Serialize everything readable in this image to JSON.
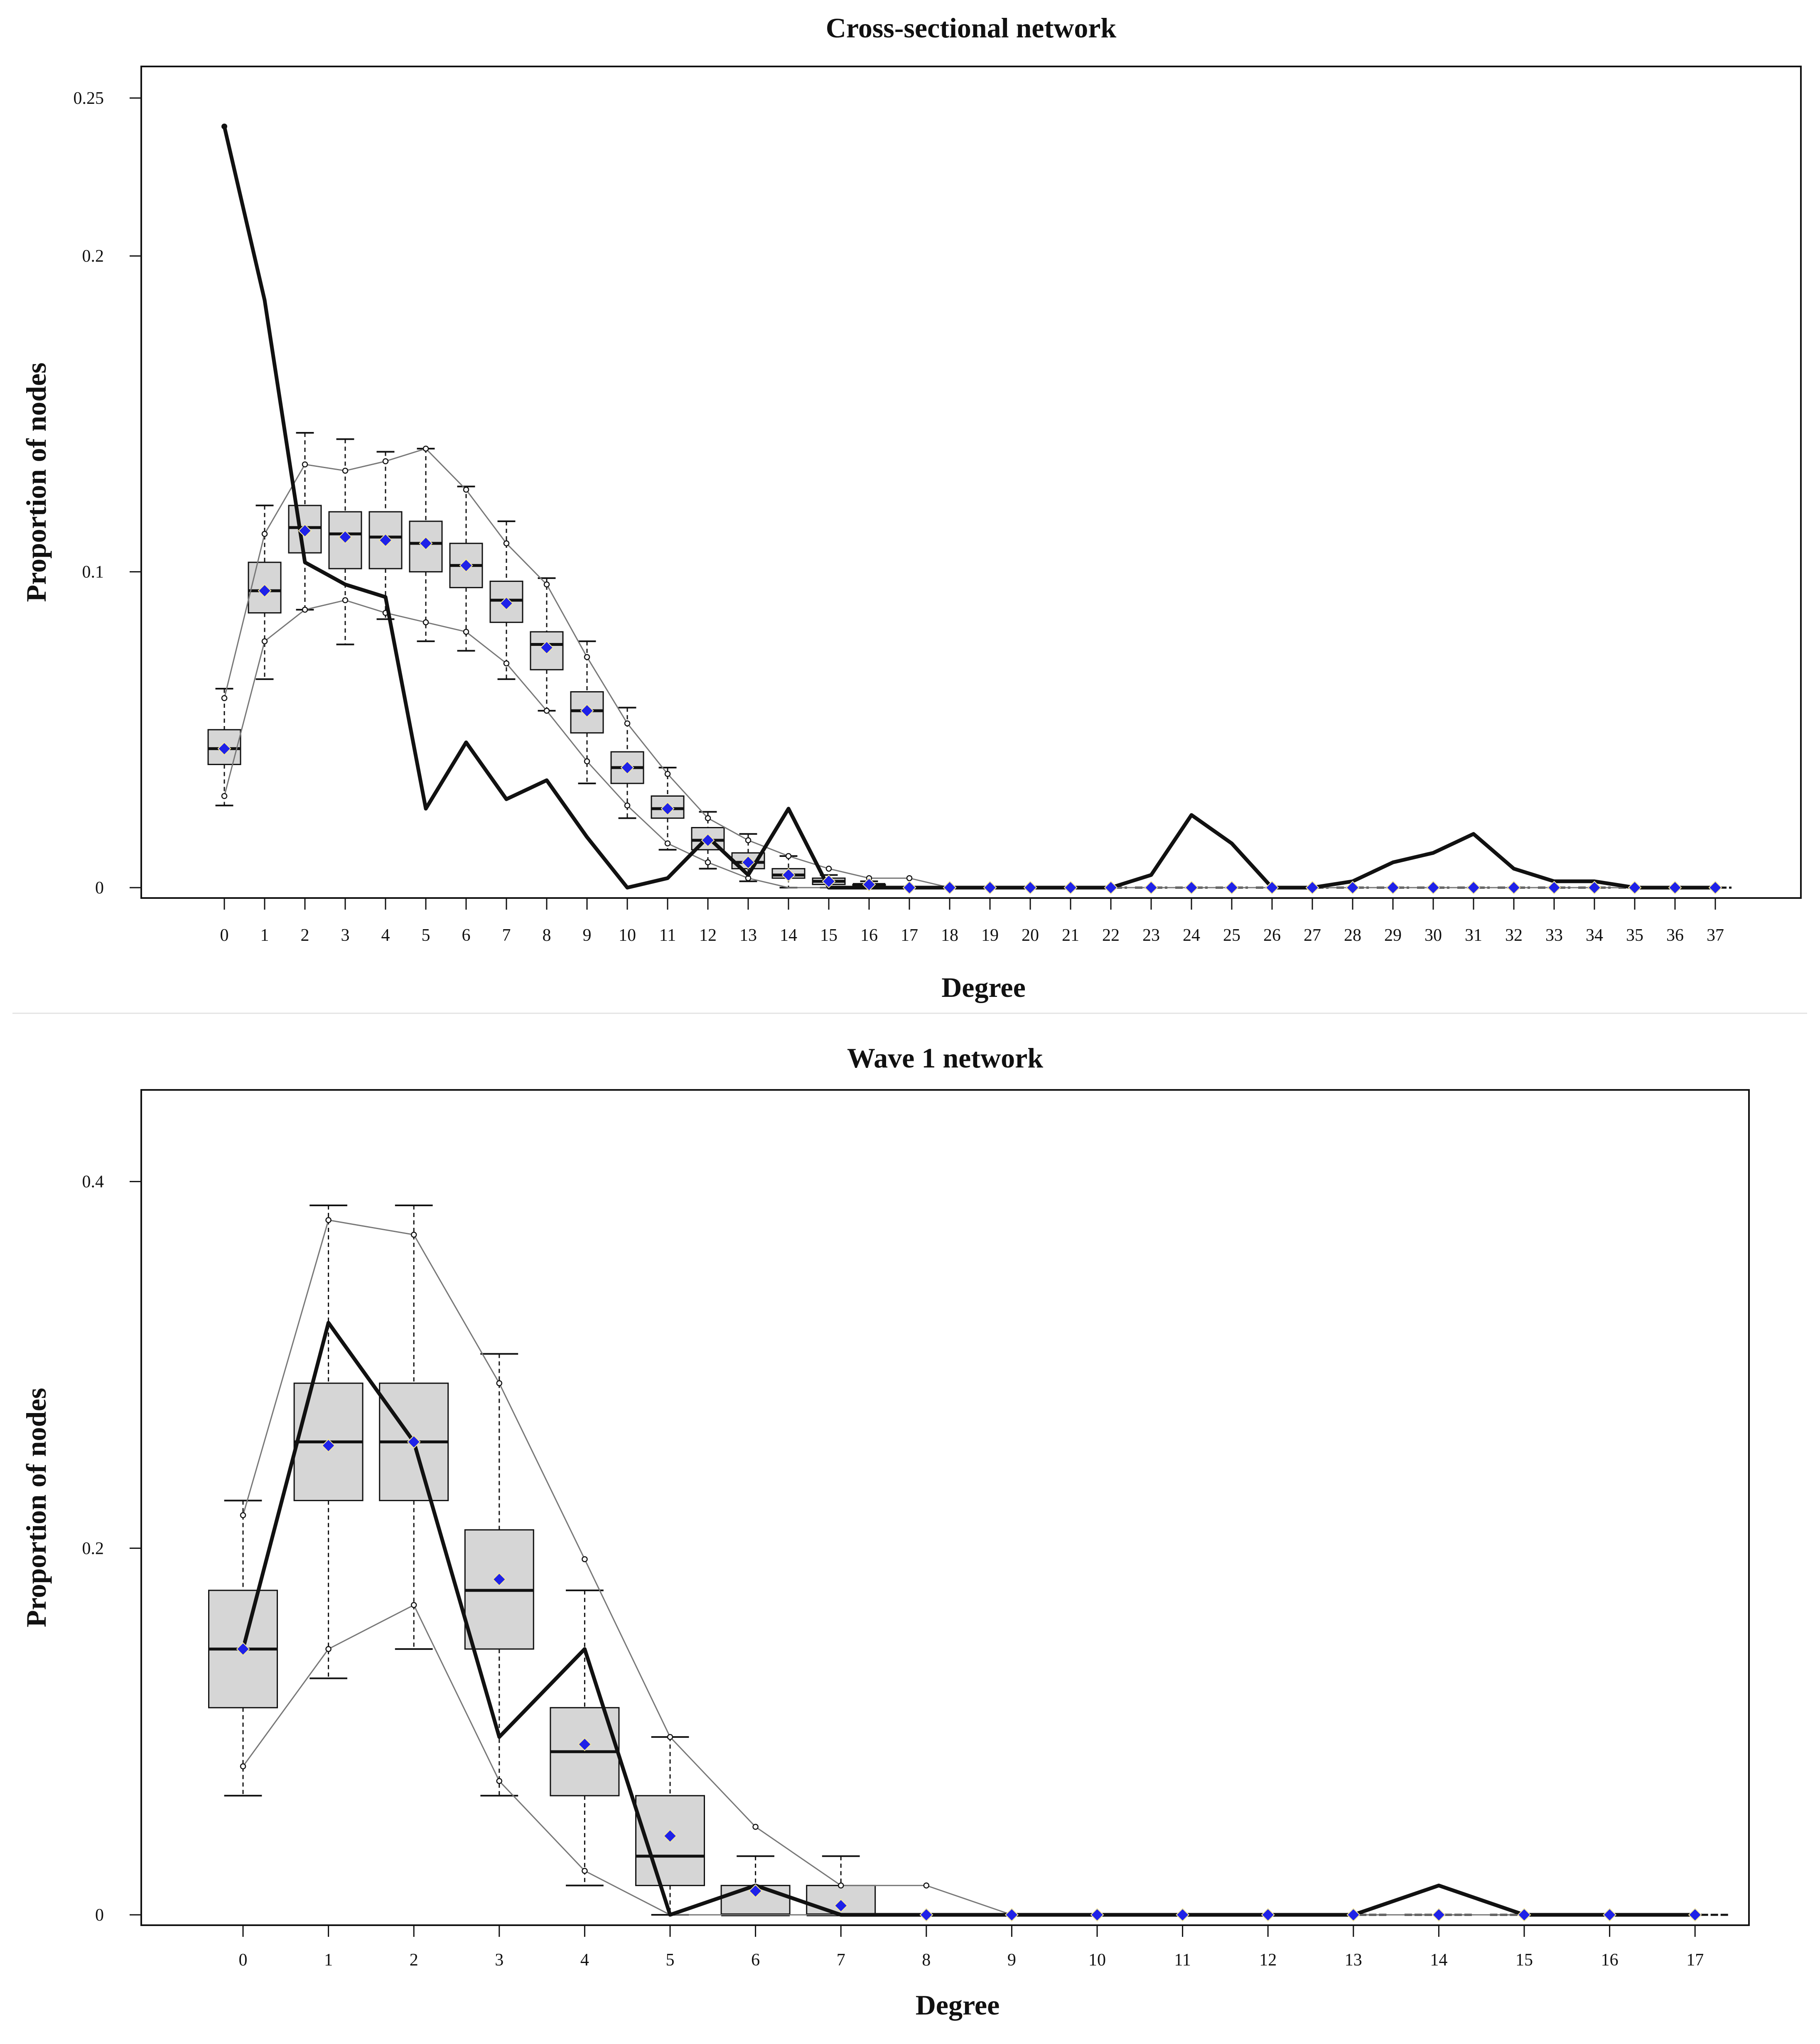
{
  "colors": {
    "box_fill": "#d6d6d6",
    "observed_line": "#111111",
    "quantile_line": "#777777",
    "mean_marker": "#1f22e8"
  },
  "chart_data": [
    {
      "type": "boxplot",
      "title": "Cross-sectional network",
      "xlabel": "Degree",
      "ylabel": "Proportion of nodes",
      "ylim": [
        0,
        0.26
      ],
      "x": [
        0,
        1,
        2,
        3,
        4,
        5,
        6,
        7,
        8,
        9,
        10,
        11,
        12,
        13,
        14,
        15,
        16,
        17,
        18,
        19,
        20,
        21,
        22,
        23,
        24,
        25,
        26,
        27,
        28,
        29,
        30,
        31,
        32,
        33,
        34,
        35,
        36,
        37
      ],
      "yticks": [
        0,
        0.1,
        0.2,
        0.25
      ],
      "ytick_labels": [
        "0",
        "0.1",
        "0.2",
        "0.25"
      ],
      "observed": [
        0.241,
        0.186,
        0.103,
        0.096,
        0.092,
        0.025,
        0.046,
        0.028,
        0.034,
        0.016,
        0.0,
        0.003,
        0.016,
        0.004,
        0.025,
        0.0,
        0.0,
        0.0,
        0.0,
        0.0,
        0.0,
        0.0,
        0.0,
        0.004,
        0.023,
        0.014,
        0.0,
        0.0,
        0.002,
        0.008,
        0.011,
        0.017,
        0.006,
        0.002,
        0.002,
        0.0,
        0.0,
        0.0
      ],
      "sim_mean": [
        0.044,
        0.094,
        0.113,
        0.111,
        0.11,
        0.109,
        0.102,
        0.09,
        0.076,
        0.056,
        0.038,
        0.025,
        0.015,
        0.008,
        0.004,
        0.002,
        0.001,
        0.0,
        0.0,
        0.0,
        0.0,
        0.0,
        0.0,
        0.0,
        0.0,
        0.0,
        0.0,
        0.0,
        0.0,
        0.0,
        0.0,
        0.0,
        0.0,
        0.0,
        0.0,
        0.0,
        0.0,
        0.0
      ],
      "box_median": [
        0.044,
        0.094,
        0.114,
        0.112,
        0.111,
        0.109,
        0.102,
        0.091,
        0.077,
        0.056,
        0.038,
        0.025,
        0.015,
        0.008,
        0.004,
        0.002,
        0.001,
        0.0,
        0.0,
        0.0,
        0.0,
        0.0,
        0.0,
        0.0,
        0.0,
        0.0,
        0.0,
        0.0,
        0.0,
        0.0,
        0.0,
        0.0,
        0.0,
        0.0,
        0.0,
        0.0,
        0.0,
        0.0
      ],
      "box_q1": [
        0.039,
        0.087,
        0.106,
        0.101,
        0.101,
        0.1,
        0.095,
        0.084,
        0.069,
        0.049,
        0.033,
        0.022,
        0.012,
        0.006,
        0.003,
        0.001,
        0.0,
        0.0,
        0.0,
        0.0,
        0.0,
        0.0,
        0.0,
        0.0,
        0.0,
        0.0,
        0.0,
        0.0,
        0.0,
        0.0,
        0.0,
        0.0,
        0.0,
        0.0,
        0.0,
        0.0,
        0.0,
        0.0
      ],
      "box_q3": [
        0.05,
        0.103,
        0.121,
        0.119,
        0.119,
        0.116,
        0.109,
        0.097,
        0.081,
        0.062,
        0.043,
        0.029,
        0.019,
        0.011,
        0.006,
        0.003,
        0.001,
        0.0,
        0.0,
        0.0,
        0.0,
        0.0,
        0.0,
        0.0,
        0.0,
        0.0,
        0.0,
        0.0,
        0.0,
        0.0,
        0.0,
        0.0,
        0.0,
        0.0,
        0.0,
        0.0,
        0.0,
        0.0
      ],
      "whisker_low": [
        0.026,
        0.066,
        0.088,
        0.077,
        0.085,
        0.078,
        0.075,
        0.066,
        0.056,
        0.033,
        0.022,
        0.012,
        0.006,
        0.002,
        0.0,
        0.0,
        0.0,
        0.0,
        0.0,
        0.0,
        0.0,
        0.0,
        0.0,
        0.0,
        0.0,
        0.0,
        0.0,
        0.0,
        0.0,
        0.0,
        0.0,
        0.0,
        0.0,
        0.0,
        0.0,
        0.0,
        0.0,
        0.0
      ],
      "whisker_high": [
        0.063,
        0.121,
        0.144,
        0.142,
        0.138,
        0.139,
        0.127,
        0.116,
        0.098,
        0.078,
        0.057,
        0.038,
        0.024,
        0.017,
        0.01,
        0.004,
        0.002,
        0.0,
        0.0,
        0.0,
        0.0,
        0.0,
        0.0,
        0.0,
        0.0,
        0.0,
        0.0,
        0.0,
        0.0,
        0.0,
        0.0,
        0.0,
        0.0,
        0.0,
        0.0,
        0.0,
        0.0,
        0.0
      ],
      "lower_quantile_line": [
        0.029,
        0.078,
        0.088,
        0.091,
        0.087,
        0.084,
        0.081,
        0.071,
        0.056,
        0.04,
        0.026,
        0.014,
        0.008,
        0.003,
        0.0,
        0.0,
        0.0,
        0.0,
        0.0,
        0.0,
        0.0,
        0.0,
        0.0,
        0.0,
        0.0,
        0.0,
        0.0,
        0.0,
        0.0,
        0.0,
        0.0,
        0.0,
        0.0,
        0.0,
        0.0,
        0.0,
        0.0,
        0.0
      ],
      "upper_quantile_line": [
        0.06,
        0.112,
        0.134,
        0.132,
        0.135,
        0.139,
        0.126,
        0.109,
        0.096,
        0.073,
        0.052,
        0.036,
        0.022,
        0.015,
        0.01,
        0.006,
        0.003,
        0.003,
        0.0,
        0.0,
        0.0,
        0.0,
        0.0,
        0.0,
        0.0,
        0.0,
        0.0,
        0.0,
        0.0,
        0.0,
        0.0,
        0.0,
        0.0,
        0.0,
        0.0,
        0.0,
        0.0,
        0.0
      ]
    },
    {
      "type": "boxplot",
      "title": "Wave 1 network",
      "xlabel": "Degree",
      "ylabel": "Proportion of nodes",
      "ylim": [
        0,
        0.45
      ],
      "x": [
        0,
        1,
        2,
        3,
        4,
        5,
        6,
        7,
        8,
        9,
        10,
        11,
        12,
        13,
        14,
        15,
        16,
        17
      ],
      "yticks": [
        0,
        0.2,
        0.4
      ],
      "ytick_labels": [
        "0",
        "0.2",
        "0.4"
      ],
      "observed": [
        0.145,
        0.323,
        0.258,
        0.097,
        0.145,
        0.0,
        0.016,
        0.0,
        0.0,
        0.0,
        0.0,
        0.0,
        0.0,
        0.0,
        0.016,
        0.0,
        0.0,
        0.0
      ],
      "sim_mean": [
        0.145,
        0.256,
        0.258,
        0.183,
        0.093,
        0.043,
        0.013,
        0.005,
        0.0,
        0.0,
        0.0,
        0.0,
        0.0,
        0.0,
        0.0,
        0.0,
        0.0,
        0.0
      ],
      "box_median": [
        0.145,
        0.258,
        0.258,
        0.177,
        0.089,
        0.032,
        0.0,
        0.0,
        0.0,
        0.0,
        0.0,
        0.0,
        0.0,
        0.0,
        0.0,
        0.0,
        0.0,
        0.0
      ],
      "box_q1": [
        0.113,
        0.226,
        0.226,
        0.145,
        0.065,
        0.016,
        0.0,
        0.0,
        0.0,
        0.0,
        0.0,
        0.0,
        0.0,
        0.0,
        0.0,
        0.0,
        0.0,
        0.0
      ],
      "box_q3": [
        0.177,
        0.29,
        0.29,
        0.21,
        0.113,
        0.065,
        0.016,
        0.016,
        0.0,
        0.0,
        0.0,
        0.0,
        0.0,
        0.0,
        0.0,
        0.0,
        0.0,
        0.0
      ],
      "whisker_low": [
        0.065,
        0.129,
        0.145,
        0.065,
        0.016,
        0.0,
        0.0,
        0.0,
        0.0,
        0.0,
        0.0,
        0.0,
        0.0,
        0.0,
        0.0,
        0.0,
        0.0,
        0.0
      ],
      "whisker_high": [
        0.226,
        0.387,
        0.387,
        0.306,
        0.177,
        0.097,
        0.032,
        0.032,
        0.0,
        0.0,
        0.0,
        0.0,
        0.0,
        0.0,
        0.0,
        0.0,
        0.0,
        0.0
      ],
      "lower_quantile_line": [
        0.081,
        0.145,
        0.169,
        0.073,
        0.024,
        0.0,
        0.0,
        0.0,
        0.0,
        0.0,
        0.0,
        0.0,
        0.0,
        0.0,
        0.0,
        0.0,
        0.0,
        0.0
      ],
      "upper_quantile_line": [
        0.218,
        0.379,
        0.371,
        0.29,
        0.194,
        0.097,
        0.048,
        0.016,
        0.016,
        0.0,
        0.0,
        0.0,
        0.0,
        0.0,
        0.0,
        0.0,
        0.0,
        0.0
      ]
    }
  ]
}
